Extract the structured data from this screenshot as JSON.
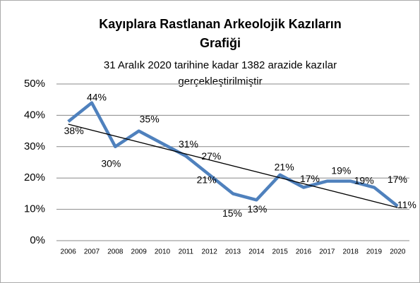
{
  "chart_data": {
    "type": "line",
    "title": [
      "Kayıplara Rastlanan Arkeolojik Kazıların",
      "Grafiği"
    ],
    "subtitle": [
      "31 Aralık 2020 tarihine kadar 1382 arazide kazılar",
      "gerçekleştirilmiştir"
    ],
    "categories": [
      "2006",
      "2007",
      "2008",
      "2009",
      "2010",
      "2011",
      "2012",
      "2013",
      "2014",
      "2015",
      "2016",
      "2017",
      "2018",
      "2019",
      "2020"
    ],
    "values": [
      38,
      44,
      30,
      35,
      31,
      27,
      21,
      15,
      13,
      21,
      17,
      19,
      19,
      17,
      11
    ],
    "value_labels": [
      "38%",
      "44%",
      "30%",
      "35%",
      "31%",
      "27%",
      "21%",
      "15%",
      "13%",
      "21%",
      "17%",
      "19%",
      "19%",
      "17%",
      "11%"
    ],
    "color": "#4f81bd",
    "trendline": true,
    "trendline_color": "#000000",
    "ylim": [
      0,
      50
    ],
    "yticks": [
      {
        "value": 0,
        "label": "0%"
      },
      {
        "value": 10,
        "label": "10%"
      },
      {
        "value": 20,
        "label": "20%"
      },
      {
        "value": 30,
        "label": "30%"
      },
      {
        "value": 40,
        "label": "40%"
      },
      {
        "value": 50,
        "label": "50%"
      }
    ],
    "grid": true
  }
}
